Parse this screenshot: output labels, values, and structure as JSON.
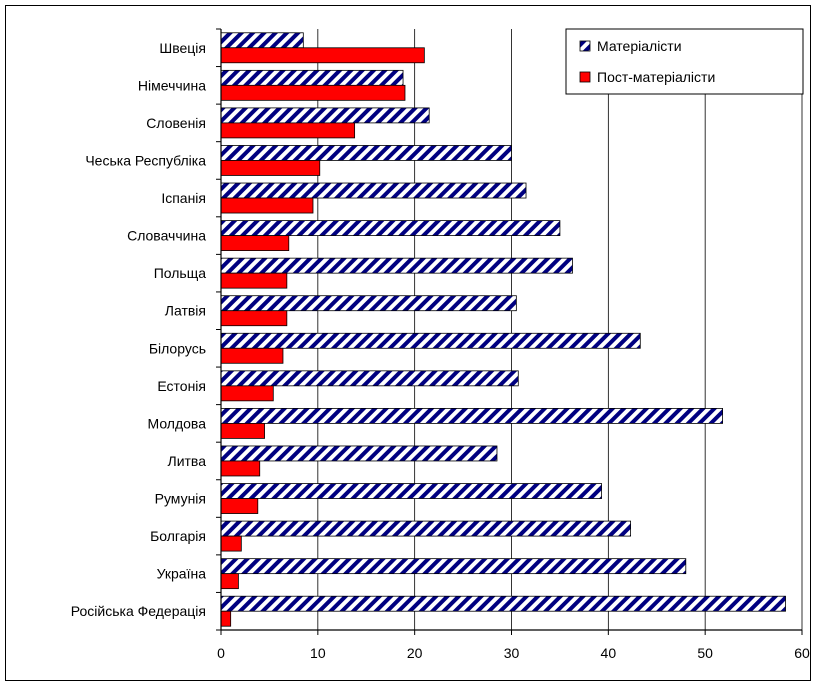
{
  "chart_data": {
    "type": "bar",
    "orientation": "horizontal",
    "categories": [
      "Швеція",
      "Німеччина",
      "Словенія",
      "Чеська Республіка",
      "Іспанія",
      "Словаччина",
      "Польща",
      "Латвія",
      "Білорусь",
      "Естонія",
      "Молдова",
      "Литва",
      "Румунія",
      "Болгарія",
      "Україна",
      "Російська Федерація"
    ],
    "series": [
      {
        "name": "Матеріалісти",
        "values": [
          8.5,
          18.8,
          21.5,
          30.0,
          31.5,
          35.0,
          36.3,
          30.5,
          43.3,
          30.7,
          51.8,
          28.5,
          39.3,
          42.3,
          48.0,
          58.3
        ],
        "color": "#000080",
        "pattern": "diagonal-stripes"
      },
      {
        "name": "Пост-матеріалісти",
        "values": [
          21.0,
          19.0,
          13.8,
          10.2,
          9.5,
          7.0,
          6.8,
          6.8,
          6.4,
          5.4,
          4.5,
          4.0,
          3.8,
          2.1,
          1.8,
          1.0
        ],
        "color": "#ff0000",
        "pattern": "solid"
      }
    ],
    "xlim": [
      0,
      60
    ],
    "xticks": [
      "0",
      "10",
      "20",
      "30",
      "40",
      "50",
      "60"
    ],
    "grid": "vertical",
    "legend": "top-right",
    "title": "",
    "xlabel": "",
    "ylabel": ""
  }
}
